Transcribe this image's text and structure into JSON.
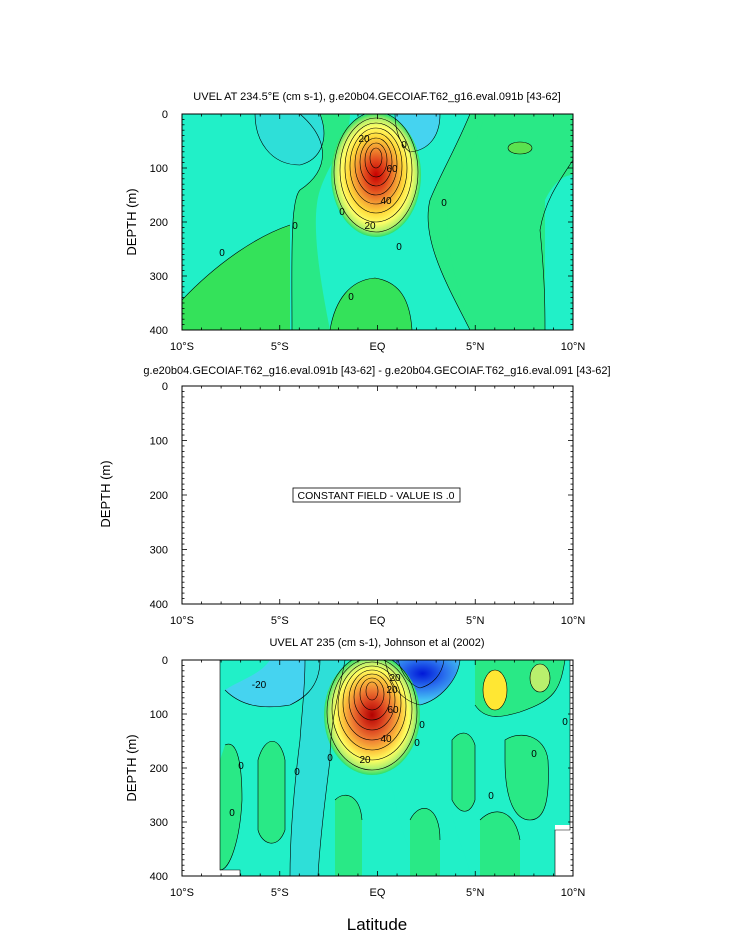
{
  "figure": {
    "xlabel": "Latitude",
    "x_ticks": [
      "10°S",
      "5°S",
      "EQ",
      "5°N",
      "10°N"
    ],
    "y_ticks": [
      "0",
      "100",
      "200",
      "300",
      "400"
    ],
    "ylabel": "DEPTH (m)"
  },
  "chart_data": [
    {
      "type": "heatmap",
      "title": "UVEL AT 234.5°E (cm s-1), g.e20b04.GECOIAF.T62_g16.eval.091b [43-62]",
      "xlabel": "",
      "ylabel": "DEPTH (m)",
      "xlim": [
        -10,
        10
      ],
      "ylim": [
        400,
        0
      ],
      "contour_labels": [
        "20",
        "0",
        "60",
        "40",
        "20",
        "0",
        "0",
        "0",
        "0",
        "0",
        "0"
      ],
      "core": {
        "lat": 0,
        "depth": 100,
        "max_approx": 80
      },
      "colors": {
        "low": "#0033cc",
        "mid_cyan": "#00ffcc",
        "green": "#00e64d",
        "high": "#cc0000"
      }
    },
    {
      "type": "heatmap",
      "title": "g.e20b04.GECOIAF.T62_g16.eval.091b [43-62] - g.e20b04.GECOIAF.T62_g16.eval.091 [43-62]",
      "xlabel": "",
      "ylabel": "DEPTH (m)",
      "xlim": [
        -10,
        10
      ],
      "ylim": [
        400,
        0
      ],
      "annotation": "CONSTANT FIELD - VALUE IS .0"
    },
    {
      "type": "heatmap",
      "title": "UVEL AT 235 (cm s-1), Johnson et al (2002)",
      "xlabel": "Latitude",
      "ylabel": "DEPTH (m)",
      "xlim": [
        -10,
        10
      ],
      "ylim": [
        400,
        0
      ],
      "contour_labels": [
        "-20",
        "20",
        "20",
        "60",
        "40",
        "20",
        "0",
        "0",
        "0",
        "0",
        "0",
        "0",
        "0",
        "0",
        "0"
      ],
      "core": {
        "lat": 0,
        "depth": 85,
        "max_approx": 95
      }
    }
  ]
}
